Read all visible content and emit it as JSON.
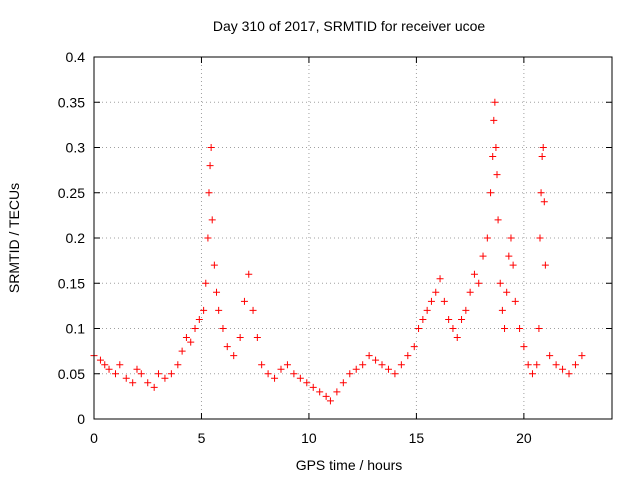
{
  "chart_data": {
    "type": "scatter",
    "title": "Day 310 of 2017, SRMTID for receiver ucoe",
    "xlabel": "GPS time / hours",
    "ylabel": "SRMTID / TECUs",
    "xlim": [
      0,
      24.1
    ],
    "ylim": [
      0,
      0.4
    ],
    "xticks": [
      0,
      5,
      10,
      15,
      20
    ],
    "xtick_labels": [
      "0",
      "5",
      "10",
      "15",
      "20"
    ],
    "yticks": [
      0,
      0.05,
      0.1,
      0.15,
      0.2,
      0.25,
      0.3,
      0.35,
      0.4
    ],
    "ytick_labels": [
      "0",
      "0.05",
      "0.1",
      "0.15",
      "0.2",
      "0.25",
      "0.3",
      "0.35",
      "0.4"
    ],
    "grid": true,
    "marker": "plus",
    "color": "#ff0000",
    "series": [
      {
        "name": "SRMTID",
        "x": [
          0.0,
          0.3,
          0.5,
          0.7,
          1.0,
          1.2,
          1.5,
          1.8,
          2.0,
          2.2,
          2.5,
          2.8,
          3.0,
          3.3,
          3.6,
          3.9,
          4.1,
          4.3,
          4.5,
          4.7,
          4.9,
          5.1,
          5.2,
          5.3,
          5.35,
          5.4,
          5.45,
          5.5,
          5.6,
          5.7,
          5.8,
          6.0,
          6.2,
          6.5,
          6.8,
          7.0,
          7.2,
          7.4,
          7.6,
          7.8,
          8.1,
          8.4,
          8.7,
          9.0,
          9.3,
          9.6,
          9.9,
          10.2,
          10.5,
          10.8,
          11.0,
          11.3,
          11.6,
          11.9,
          12.2,
          12.5,
          12.8,
          13.1,
          13.4,
          13.7,
          14.0,
          14.3,
          14.6,
          14.9,
          15.1,
          15.3,
          15.5,
          15.7,
          15.9,
          16.1,
          16.3,
          16.5,
          16.7,
          16.9,
          17.1,
          17.3,
          17.5,
          17.7,
          17.9,
          18.1,
          18.3,
          18.45,
          18.55,
          18.6,
          18.65,
          18.7,
          18.75,
          18.8,
          18.9,
          19.0,
          19.1,
          19.2,
          19.3,
          19.4,
          19.5,
          19.6,
          19.8,
          20.0,
          20.2,
          20.4,
          20.6,
          20.7,
          20.75,
          20.8,
          20.85,
          20.9,
          20.95,
          21.0,
          21.2,
          21.5,
          21.8,
          22.1,
          22.4,
          22.7
        ],
        "y": [
          0.07,
          0.065,
          0.06,
          0.055,
          0.05,
          0.06,
          0.045,
          0.04,
          0.055,
          0.05,
          0.04,
          0.035,
          0.05,
          0.045,
          0.05,
          0.06,
          0.075,
          0.09,
          0.085,
          0.1,
          0.11,
          0.12,
          0.15,
          0.2,
          0.25,
          0.28,
          0.3,
          0.22,
          0.17,
          0.14,
          0.12,
          0.1,
          0.08,
          0.07,
          0.09,
          0.13,
          0.16,
          0.12,
          0.09,
          0.06,
          0.05,
          0.045,
          0.055,
          0.06,
          0.05,
          0.045,
          0.04,
          0.035,
          0.03,
          0.025,
          0.02,
          0.03,
          0.04,
          0.05,
          0.055,
          0.06,
          0.07,
          0.065,
          0.06,
          0.055,
          0.05,
          0.06,
          0.07,
          0.08,
          0.1,
          0.11,
          0.12,
          0.13,
          0.14,
          0.155,
          0.13,
          0.11,
          0.1,
          0.09,
          0.11,
          0.12,
          0.14,
          0.16,
          0.15,
          0.18,
          0.2,
          0.25,
          0.29,
          0.33,
          0.35,
          0.3,
          0.27,
          0.22,
          0.15,
          0.12,
          0.1,
          0.14,
          0.18,
          0.2,
          0.17,
          0.13,
          0.1,
          0.08,
          0.06,
          0.05,
          0.06,
          0.1,
          0.2,
          0.25,
          0.29,
          0.3,
          0.24,
          0.17,
          0.07,
          0.06,
          0.055,
          0.05,
          0.06,
          0.07
        ]
      }
    ]
  }
}
